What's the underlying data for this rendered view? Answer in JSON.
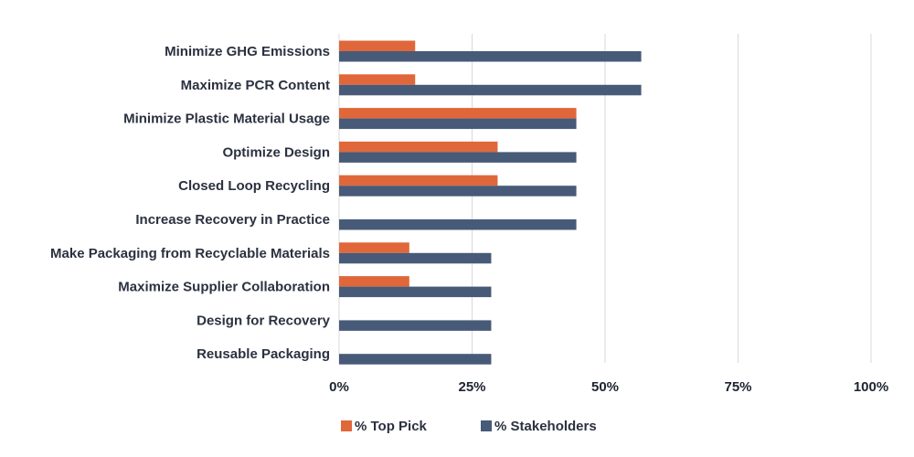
{
  "chart_data": {
    "type": "bar",
    "orientation": "horizontal",
    "title": "",
    "xlabel": "",
    "ylabel": "",
    "categories": [
      "Minimize GHG Emissions",
      "Maximize PCR Content",
      "Minimize Plastic Material Usage",
      "Optimize Design",
      "Closed Loop Recycling",
      "Increase Recovery in Practice",
      "Make Packaging from Recyclable Materials",
      "Maximize Supplier Collaboration",
      "Design for Recovery",
      "Reusable Packaging"
    ],
    "series": [
      {
        "name": "% Top Pick",
        "color": "#e0673a",
        "values": [
          14.3,
          14.3,
          44.6,
          29.8,
          29.8,
          0,
          13.2,
          13.2,
          0,
          0
        ]
      },
      {
        "name": "% Stakeholders",
        "color": "#475a78",
        "values": [
          56.8,
          56.8,
          44.6,
          44.6,
          44.6,
          44.6,
          28.6,
          28.6,
          28.6,
          28.6
        ]
      }
    ],
    "xlim": [
      0,
      100
    ],
    "xticks": [
      0,
      25,
      50,
      75,
      100
    ],
    "xtick_labels": [
      "0%",
      "25%",
      "50%",
      "75%",
      "100%"
    ],
    "grid": "vertical",
    "gridline_color": "#d9d9d9",
    "legend": "bottom-center"
  }
}
